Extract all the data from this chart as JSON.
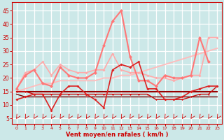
{
  "x": [
    0,
    1,
    2,
    3,
    4,
    5,
    6,
    7,
    8,
    9,
    10,
    11,
    12,
    13,
    14,
    15,
    16,
    17,
    18,
    19,
    20,
    21,
    22,
    23
  ],
  "lines": [
    {
      "y": [
        16,
        22,
        23,
        26,
        21,
        25,
        23,
        22,
        22,
        23,
        23,
        29,
        23,
        22,
        22,
        21,
        20,
        20,
        19,
        20,
        21,
        21,
        35,
        35
      ],
      "color": "#ffaaaa",
      "lw": 1.2,
      "marker": "D",
      "ms": 2.0,
      "zorder": 3
    },
    {
      "y": [
        16,
        21,
        23,
        18,
        17,
        24,
        21,
        20,
        20,
        22,
        32,
        41,
        45,
        28,
        19,
        19,
        17,
        21,
        20,
        20,
        21,
        35,
        26,
        null
      ],
      "color": "#ff7777",
      "lw": 1.5,
      "marker": "D",
      "ms": 2.5,
      "zorder": 4
    },
    {
      "y": [
        12,
        13,
        14,
        14,
        8,
        14,
        17,
        17,
        14,
        12,
        9,
        23,
        25,
        24,
        26,
        16,
        16,
        12,
        12,
        13,
        15,
        16,
        17,
        17
      ],
      "color": "#dd2222",
      "lw": 1.2,
      "marker": "D",
      "ms": 2.0,
      "zorder": 5
    },
    {
      "y": [
        15,
        15,
        15,
        15,
        15,
        15,
        15,
        15,
        15,
        15,
        15,
        15,
        15,
        15,
        15,
        15,
        15,
        15,
        15,
        15,
        15,
        15,
        15,
        15
      ],
      "color": "#990000",
      "lw": 1.5,
      "marker": null,
      "zorder": 3
    },
    {
      "y": [
        14,
        13,
        13,
        13,
        13,
        13,
        13,
        13,
        13,
        13,
        13,
        13,
        13,
        13,
        13,
        13,
        13,
        13,
        13,
        13,
        13,
        13,
        13,
        13
      ],
      "color": "#770000",
      "lw": 1.0,
      "marker": null,
      "zorder": 2
    },
    {
      "y": [
        15,
        15,
        14,
        14,
        14,
        14,
        14,
        14,
        14,
        14,
        14,
        14,
        14,
        14,
        14,
        14,
        12,
        12,
        12,
        12,
        13,
        14,
        14,
        17
      ],
      "color": "#cc1111",
      "lw": 1.0,
      "marker": "D",
      "ms": 1.5,
      "zorder": 3
    },
    {
      "y": [
        15,
        16,
        17,
        18,
        18,
        19,
        19,
        19,
        19,
        19,
        20,
        20,
        21,
        21,
        22,
        23,
        24,
        25,
        26,
        27,
        28,
        29,
        30,
        31
      ],
      "color": "#ffbbbb",
      "lw": 1.3,
      "marker": null,
      "zorder": 2
    }
  ],
  "bg_color": "#cce8e8",
  "grid_color": "#ffffff",
  "axis_color": "#cc0000",
  "xlabel": "Vent moyen/en rafales ( km/h )",
  "ylim": [
    3,
    48
  ],
  "yticks": [
    5,
    10,
    15,
    20,
    25,
    30,
    35,
    40,
    45
  ],
  "xticks": [
    0,
    1,
    2,
    3,
    4,
    5,
    6,
    7,
    8,
    9,
    10,
    11,
    12,
    13,
    14,
    15,
    16,
    17,
    18,
    19,
    20,
    21,
    22,
    23
  ],
  "figsize": [
    3.2,
    2.0
  ],
  "dpi": 100
}
